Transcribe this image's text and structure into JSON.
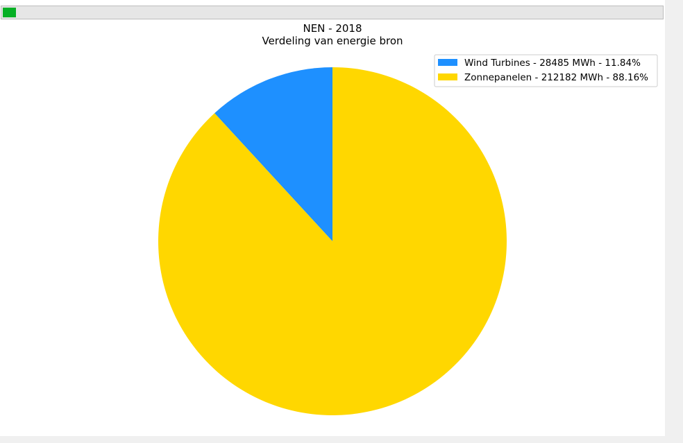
{
  "progress": {
    "value": 0.02,
    "color": "#06b025"
  },
  "chart_data": {
    "type": "pie",
    "title": "NEN - 2018",
    "subtitle": "Verdeling van energie bron",
    "legend_position": "top-right",
    "start_angle_deg": 90,
    "direction": "counterclockwise",
    "slices": [
      {
        "label": "Wind Turbines - 28485 MWh - 11.84%",
        "name": "Wind Turbines",
        "value": 28485,
        "unit": "MWh",
        "percent": 11.84,
        "color": "#1e90ff"
      },
      {
        "label": "Zonnepanelen - 212182 MWh - 88.16%",
        "name": "Zonnepanelen",
        "value": 212182,
        "unit": "MWh",
        "percent": 88.16,
        "color": "#ffd700"
      }
    ]
  }
}
